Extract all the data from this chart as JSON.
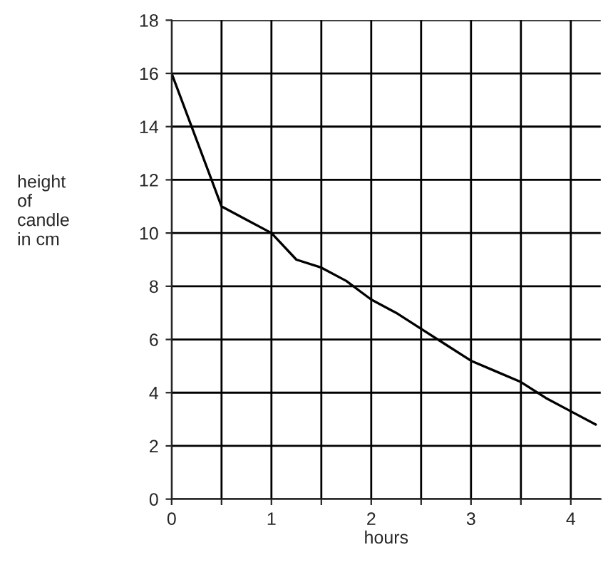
{
  "chart_data": {
    "type": "line",
    "xlabel": "hours",
    "ylabel": "height\nof\ncandle\nin cm",
    "x": [
      0,
      0.25,
      0.5,
      0.75,
      1,
      1.25,
      1.5,
      1.75,
      2,
      2.25,
      2.5,
      2.75,
      3,
      3.25,
      3.5,
      3.75,
      4,
      4.25
    ],
    "series": [
      {
        "color": "#000000",
        "values": [
          16,
          13.5,
          11,
          10.5,
          10,
          9,
          8.7,
          8.2,
          7.5,
          7,
          6.4,
          5.8,
          5.2,
          4.8,
          4.4,
          3.8,
          3.3,
          2.8
        ]
      }
    ],
    "xlim": [
      0,
      4.3
    ],
    "ylim": [
      0,
      18
    ],
    "xticks": [
      0,
      {
        "value": 0.5,
        "label": null
      },
      1,
      {
        "value": 1.5,
        "label": null
      },
      2,
      {
        "value": 2.5,
        "label": null
      },
      3,
      {
        "value": 3.5,
        "label": null
      },
      4
    ],
    "yticks": [
      0,
      2,
      4,
      6,
      8,
      10,
      12,
      14,
      16,
      18
    ],
    "grid": true,
    "marker": "none",
    "line_style": "solid"
  }
}
